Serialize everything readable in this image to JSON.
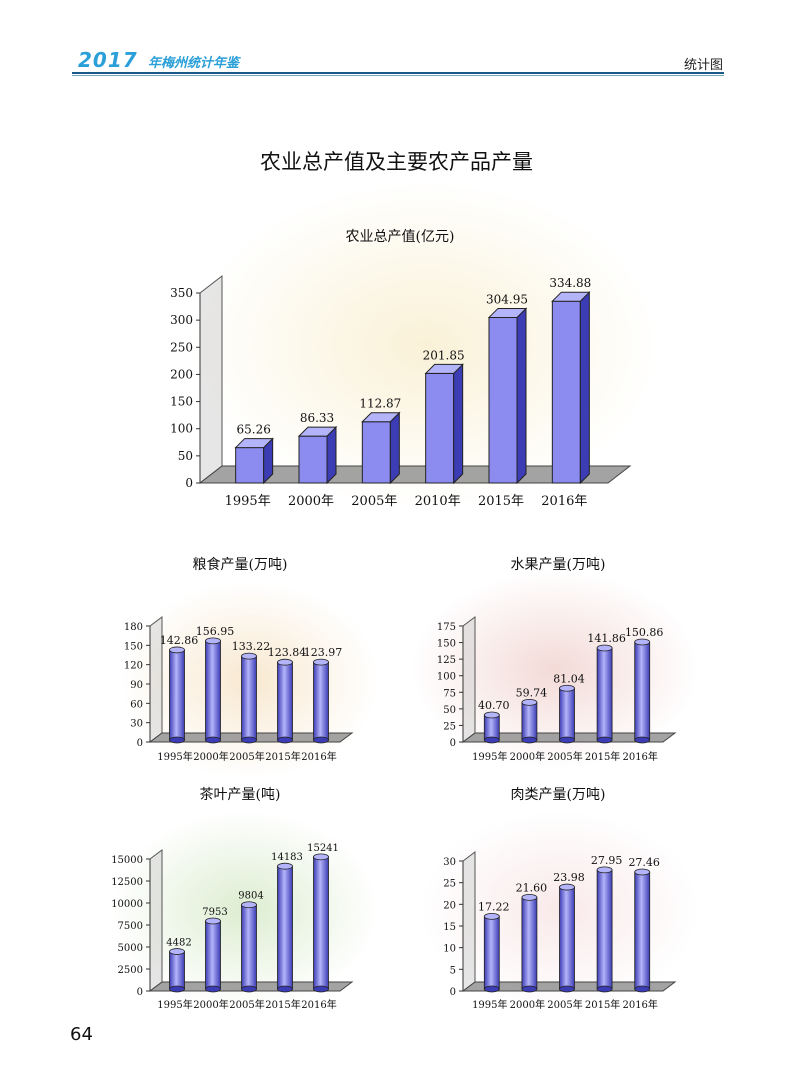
{
  "header": {
    "year": "2017",
    "book_title": "年梅州统计年鉴",
    "section": "统计图"
  },
  "page_title": "农业总产值及主要农产品产量",
  "page_number": "64",
  "colors": {
    "bar_face": "#8c8cf0",
    "bar_side": "#3c3cb4",
    "bar_top": "#b4b4fa",
    "header_blue": "#2a9fd8"
  },
  "chart_data": [
    {
      "type": "bar",
      "title": "农业总产值(亿元)",
      "categories": [
        "1995年",
        "2000年",
        "2005年",
        "2010年",
        "2015年",
        "2016年"
      ],
      "values": [
        65.26,
        86.33,
        112.87,
        201.85,
        304.95,
        334.88
      ],
      "value_labels": [
        "65.26",
        "86.33",
        "112.87",
        "201.85",
        "304.95",
        "334.88"
      ],
      "ylim": [
        0,
        350
      ],
      "yticks": [
        0,
        50,
        100,
        150,
        200,
        250,
        300,
        350
      ]
    },
    {
      "type": "bar",
      "title": "粮食产量(万吨)",
      "categories": [
        "1995年",
        "2000年",
        "2005年",
        "2015年",
        "2016年"
      ],
      "values": [
        142.86,
        156.95,
        133.22,
        123.84,
        123.97
      ],
      "value_labels": [
        "142.86",
        "156.95",
        "133.22",
        "123.84",
        "123.97"
      ],
      "ylim": [
        0,
        180
      ],
      "yticks": [
        0,
        30,
        60,
        90,
        120,
        150,
        180
      ]
    },
    {
      "type": "bar",
      "title": "水果产量(万吨)",
      "categories": [
        "1995年",
        "2000年",
        "2005年",
        "2015年",
        "2016年"
      ],
      "values": [
        40.7,
        59.74,
        81.04,
        141.86,
        150.86
      ],
      "value_labels": [
        "40.70",
        "59.74",
        "81.04",
        "141.86",
        "150.86"
      ],
      "ylim": [
        0,
        175
      ],
      "yticks": [
        0,
        25,
        50,
        75,
        100,
        125,
        150,
        175
      ]
    },
    {
      "type": "bar",
      "title": "茶叶产量(吨)",
      "categories": [
        "1995年",
        "2000年",
        "2005年",
        "2015年",
        "2016年"
      ],
      "values": [
        4482,
        7953,
        9804,
        14183,
        15241
      ],
      "value_labels": [
        "4482",
        "7953",
        "9804",
        "14183",
        "15241"
      ],
      "ylim": [
        0,
        15000
      ],
      "yticks": [
        0,
        2500,
        5000,
        7500,
        10000,
        12500,
        15000
      ]
    },
    {
      "type": "bar",
      "title": "肉类产量(万吨)",
      "categories": [
        "1995年",
        "2000年",
        "2005年",
        "2015年",
        "2016年"
      ],
      "values": [
        17.22,
        21.6,
        23.98,
        27.95,
        27.46
      ],
      "value_labels": [
        "17.22",
        "21.60",
        "23.98",
        "27.95",
        "27.46"
      ],
      "ylim": [
        0,
        30
      ],
      "yticks": [
        0,
        5,
        10,
        15,
        20,
        25,
        30
      ]
    }
  ]
}
